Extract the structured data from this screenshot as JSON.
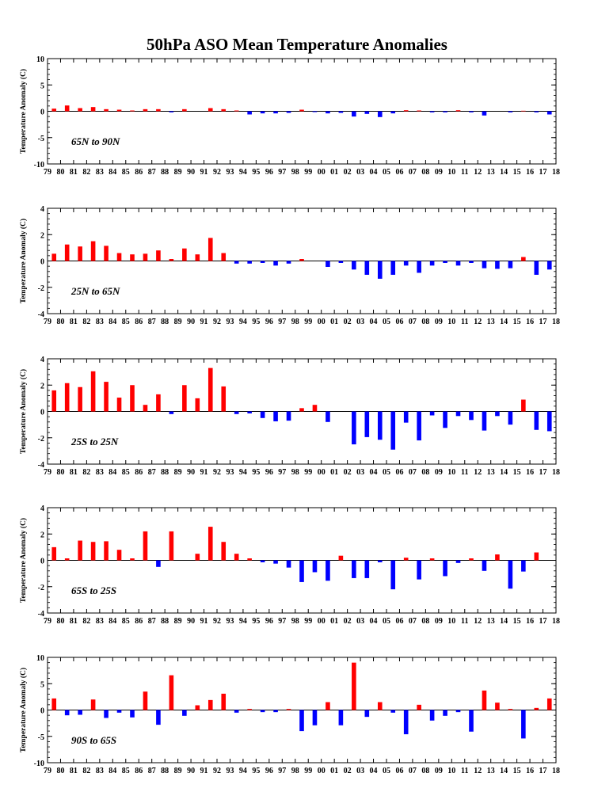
{
  "title": "50hPa ASO Mean Temperature Anomalies",
  "colors": {
    "positive": "#ff0000",
    "negative": "#0000ff",
    "axis": "#000000",
    "zero_line": "#000000"
  },
  "chart_data": [
    {
      "type": "bar",
      "region": "65N to 90N",
      "ylabel": "Temperature Anomaly (C)",
      "ylim": [
        -10,
        10
      ],
      "yticks": [
        -10,
        -5,
        0,
        5,
        10
      ],
      "categories": [
        "79",
        "80",
        "81",
        "82",
        "83",
        "84",
        "85",
        "86",
        "87",
        "88",
        "89",
        "90",
        "91",
        "92",
        "93",
        "94",
        "95",
        "96",
        "97",
        "98",
        "99",
        "00",
        "01",
        "02",
        "03",
        "04",
        "05",
        "06",
        "07",
        "08",
        "09",
        "10",
        "11",
        "12",
        "13",
        "14",
        "15",
        "16",
        "17",
        "18"
      ],
      "values": [
        0.5,
        1.1,
        0.6,
        0.8,
        0.4,
        0.3,
        0.15,
        0.4,
        0.4,
        -0.2,
        0.4,
        0.0,
        0.6,
        0.4,
        0.15,
        -0.6,
        -0.4,
        -0.4,
        -0.3,
        0.3,
        -0.15,
        -0.4,
        -0.3,
        -1.0,
        -0.5,
        -1.1,
        -0.4,
        0.2,
        0.15,
        -0.2,
        -0.2,
        0.2,
        -0.2,
        -0.8,
        0.0,
        -0.2,
        0.1,
        -0.2,
        -0.6,
        0.0
      ]
    },
    {
      "type": "bar",
      "region": "25N to 65N",
      "ylabel": "Temperature Anomaly (C)",
      "ylim": [
        -4,
        4
      ],
      "yticks": [
        -4,
        -2,
        0,
        2,
        4
      ],
      "categories": [
        "79",
        "80",
        "81",
        "82",
        "83",
        "84",
        "85",
        "86",
        "87",
        "88",
        "89",
        "90",
        "91",
        "92",
        "93",
        "94",
        "95",
        "96",
        "97",
        "98",
        "99",
        "00",
        "01",
        "02",
        "03",
        "04",
        "05",
        "06",
        "07",
        "08",
        "09",
        "10",
        "11",
        "12",
        "13",
        "14",
        "15",
        "16",
        "17",
        "18"
      ],
      "values": [
        0.55,
        1.25,
        1.1,
        1.5,
        1.15,
        0.6,
        0.5,
        0.55,
        0.8,
        0.15,
        0.95,
        0.5,
        1.75,
        0.6,
        -0.2,
        -0.2,
        -0.15,
        -0.35,
        -0.2,
        0.15,
        0.0,
        -0.45,
        -0.15,
        -0.65,
        -1.05,
        -1.35,
        -1.05,
        -0.35,
        -0.9,
        -0.35,
        -0.15,
        -0.35,
        -0.15,
        -0.55,
        -0.6,
        -0.55,
        0.3,
        -1.05,
        -0.65,
        0.0
      ]
    },
    {
      "type": "bar",
      "region": "25S to 25N",
      "ylabel": "Temperature Anomaly (C)",
      "ylim": [
        -4,
        4
      ],
      "yticks": [
        -4,
        -2,
        0,
        2,
        4
      ],
      "categories": [
        "79",
        "80",
        "81",
        "82",
        "83",
        "84",
        "85",
        "86",
        "87",
        "88",
        "89",
        "90",
        "91",
        "92",
        "93",
        "94",
        "95",
        "96",
        "97",
        "98",
        "99",
        "00",
        "01",
        "02",
        "03",
        "04",
        "05",
        "06",
        "07",
        "08",
        "09",
        "10",
        "11",
        "12",
        "13",
        "14",
        "15",
        "16",
        "17",
        "18"
      ],
      "values": [
        1.6,
        2.15,
        1.85,
        3.05,
        2.25,
        1.05,
        2.0,
        0.5,
        1.3,
        -0.2,
        2.0,
        1.0,
        3.3,
        1.9,
        -0.2,
        -0.15,
        -0.5,
        -0.75,
        -0.7,
        0.25,
        0.5,
        -0.8,
        0.0,
        -2.5,
        -1.95,
        -2.15,
        -2.9,
        -0.85,
        -2.2,
        -0.3,
        -1.25,
        -0.35,
        -0.65,
        -1.45,
        -0.35,
        -1.0,
        0.9,
        -1.4,
        -1.5,
        0.0
      ]
    },
    {
      "type": "bar",
      "region": "65S to 25S",
      "ylabel": "Temperature Anomaly (C)",
      "ylim": [
        -4,
        4
      ],
      "yticks": [
        -4,
        -2,
        0,
        2,
        4
      ],
      "categories": [
        "79",
        "80",
        "81",
        "82",
        "83",
        "84",
        "85",
        "86",
        "87",
        "88",
        "89",
        "90",
        "91",
        "92",
        "93",
        "94",
        "95",
        "96",
        "97",
        "98",
        "99",
        "00",
        "01",
        "02",
        "03",
        "04",
        "05",
        "06",
        "07",
        "08",
        "09",
        "10",
        "11",
        "12",
        "13",
        "14",
        "15",
        "16",
        "17",
        "18"
      ],
      "values": [
        1.0,
        0.15,
        1.5,
        1.4,
        1.45,
        0.8,
        0.15,
        2.2,
        -0.5,
        2.2,
        0.0,
        0.5,
        2.55,
        1.4,
        0.5,
        0.15,
        -0.15,
        -0.25,
        -0.55,
        -1.65,
        -0.9,
        -1.55,
        0.35,
        -1.35,
        -1.35,
        -0.15,
        -2.2,
        0.2,
        -1.45,
        0.15,
        -1.2,
        -0.2,
        0.15,
        -0.8,
        0.45,
        -2.15,
        -0.85,
        0.6,
        0.0,
        0.0
      ]
    },
    {
      "type": "bar",
      "region": "90S to 65S",
      "ylabel": "Temperature Anomaly (C)",
      "ylim": [
        -10,
        10
      ],
      "yticks": [
        -10,
        -5,
        0,
        5,
        10
      ],
      "categories": [
        "79",
        "80",
        "81",
        "82",
        "83",
        "84",
        "85",
        "86",
        "87",
        "88",
        "89",
        "90",
        "91",
        "92",
        "93",
        "94",
        "95",
        "96",
        "97",
        "98",
        "99",
        "00",
        "01",
        "02",
        "03",
        "04",
        "05",
        "06",
        "07",
        "08",
        "09",
        "10",
        "11",
        "12",
        "13",
        "14",
        "15",
        "16",
        "17",
        "18"
      ],
      "values": [
        2.2,
        -1.0,
        -0.9,
        2.0,
        -1.5,
        -0.5,
        -1.4,
        3.5,
        -2.8,
        6.6,
        -1.1,
        0.9,
        1.9,
        3.1,
        -0.5,
        0.2,
        -0.4,
        -0.4,
        0.2,
        -4.0,
        -2.9,
        1.5,
        -2.9,
        9.0,
        -1.3,
        1.5,
        -0.5,
        -4.6,
        1.0,
        -2.0,
        -1.1,
        -0.4,
        -4.1,
        3.7,
        1.4,
        0.2,
        -5.4,
        0.4,
        2.2,
        0.0
      ]
    }
  ]
}
